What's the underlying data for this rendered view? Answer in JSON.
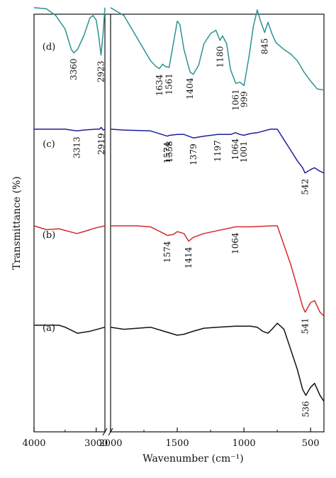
{
  "chart_data": {
    "type": "line",
    "xlabel": "Wavenumber (cm⁻¹)",
    "ylabel": "Transmittance (%)",
    "x_ticks": [
      "4000",
      "3000",
      "2000",
      "1500",
      "1000",
      "500"
    ],
    "xlim": [
      4000,
      400
    ],
    "axis_break": "between 2850 and 2000 cm⁻¹",
    "grid": false,
    "series": [
      {
        "name": "(d)",
        "color": "#2a9490",
        "curve": [
          [
            4000,
            97
          ],
          [
            3800,
            96
          ],
          [
            3650,
            90
          ],
          [
            3500,
            78
          ],
          [
            3400,
            60
          ],
          [
            3360,
            57
          ],
          [
            3300,
            60
          ],
          [
            3200,
            72
          ],
          [
            3100,
            88
          ],
          [
            3050,
            90
          ],
          [
            3000,
            86
          ],
          [
            2960,
            72
          ],
          [
            2923,
            55
          ],
          [
            2890,
            74
          ],
          [
            2860,
            97
          ],
          [
            2000,
            97
          ],
          [
            1900,
            90
          ],
          [
            1800,
            70
          ],
          [
            1700,
            50
          ],
          [
            1660,
            45
          ],
          [
            1634,
            43
          ],
          [
            1610,
            47
          ],
          [
            1590,
            45
          ],
          [
            1561,
            44
          ],
          [
            1540,
            58
          ],
          [
            1500,
            85
          ],
          [
            1480,
            82
          ],
          [
            1450,
            60
          ],
          [
            1404,
            40
          ],
          [
            1380,
            38
          ],
          [
            1340,
            46
          ],
          [
            1300,
            65
          ],
          [
            1250,
            74
          ],
          [
            1210,
            77
          ],
          [
            1180,
            68
          ],
          [
            1160,
            72
          ],
          [
            1130,
            65
          ],
          [
            1100,
            42
          ],
          [
            1061,
            30
          ],
          [
            1030,
            31
          ],
          [
            999,
            28
          ],
          [
            960,
            55
          ],
          [
            930,
            80
          ],
          [
            900,
            95
          ],
          [
            875,
            85
          ],
          [
            845,
            75
          ],
          [
            820,
            84
          ],
          [
            790,
            74
          ],
          [
            760,
            66
          ],
          [
            700,
            60
          ],
          [
            650,
            56
          ],
          [
            600,
            50
          ],
          [
            550,
            40
          ],
          [
            500,
            32
          ],
          [
            450,
            25
          ],
          [
            400,
            24
          ]
        ],
        "labels": [
          {
            "text": "3360",
            "x": 3360
          },
          {
            "text": "2923",
            "x": 2923
          },
          {
            "text": "1634",
            "x": 1634
          },
          {
            "text": "1561",
            "x": 1561
          },
          {
            "text": "1404",
            "x": 1404
          },
          {
            "text": "1180",
            "x": 1180
          },
          {
            "text": "1061",
            "x": 1061
          },
          {
            "text": "999",
            "x": 999
          },
          {
            "text": "845",
            "x": 845
          }
        ]
      },
      {
        "name": "(c)",
        "color": "#1f1f9a",
        "curve": [
          [
            4000,
            62
          ],
          [
            3600,
            62
          ],
          [
            3500,
            62
          ],
          [
            3313,
            61
          ],
          [
            3200,
            61.5
          ],
          [
            3000,
            62
          ],
          [
            2950,
            62
          ],
          [
            2919,
            63
          ],
          [
            2890,
            61.5
          ],
          [
            2860,
            62
          ],
          [
            2000,
            62
          ],
          [
            1900,
            61.5
          ],
          [
            1700,
            61
          ],
          [
            1574,
            58
          ],
          [
            1558,
            58.5
          ],
          [
            1500,
            59
          ],
          [
            1450,
            59
          ],
          [
            1379,
            57
          ],
          [
            1300,
            58
          ],
          [
            1197,
            59
          ],
          [
            1100,
            59
          ],
          [
            1064,
            60
          ],
          [
            1030,
            59
          ],
          [
            1001,
            58.5
          ],
          [
            950,
            59.5
          ],
          [
            900,
            60
          ],
          [
            850,
            61
          ],
          [
            800,
            62
          ],
          [
            750,
            62
          ],
          [
            700,
            56
          ],
          [
            650,
            50
          ],
          [
            600,
            44
          ],
          [
            560,
            40
          ],
          [
            542,
            37
          ],
          [
            500,
            39
          ],
          [
            470,
            40
          ],
          [
            430,
            38
          ],
          [
            400,
            37
          ]
        ],
        "labels": [
          {
            "text": "3313",
            "x": 3313
          },
          {
            "text": "2919",
            "x": 2919
          },
          {
            "text": "1574",
            "x": 1574
          },
          {
            "text": "1558",
            "x": 1558
          },
          {
            "text": "1379",
            "x": 1379
          },
          {
            "text": "1197",
            "x": 1197
          },
          {
            "text": "1064",
            "x": 1064
          },
          {
            "text": "1001",
            "x": 1001
          },
          {
            "text": "542",
            "x": 542
          }
        ]
      },
      {
        "name": "(b)",
        "color": "#d22b2b",
        "curve": [
          [
            4000,
            60
          ],
          [
            3800,
            58
          ],
          [
            3600,
            58.5
          ],
          [
            3313,
            56
          ],
          [
            3200,
            57
          ],
          [
            3000,
            59
          ],
          [
            2860,
            60
          ],
          [
            2000,
            60
          ],
          [
            1800,
            60
          ],
          [
            1700,
            59.5
          ],
          [
            1600,
            56
          ],
          [
            1574,
            55
          ],
          [
            1530,
            55.5
          ],
          [
            1500,
            57
          ],
          [
            1450,
            56
          ],
          [
            1414,
            52
          ],
          [
            1380,
            54
          ],
          [
            1300,
            56
          ],
          [
            1200,
            57.5
          ],
          [
            1064,
            59.5
          ],
          [
            950,
            59.5
          ],
          [
            800,
            60
          ],
          [
            750,
            60
          ],
          [
            700,
            50
          ],
          [
            650,
            40
          ],
          [
            600,
            28
          ],
          [
            560,
            18
          ],
          [
            541,
            15
          ],
          [
            500,
            20
          ],
          [
            470,
            21
          ],
          [
            430,
            15
          ],
          [
            400,
            13
          ]
        ],
        "labels": [
          {
            "text": "1574",
            "x": 1574
          },
          {
            "text": "1414",
            "x": 1414
          },
          {
            "text": "1064",
            "x": 1064
          },
          {
            "text": "541",
            "x": 541
          }
        ]
      },
      {
        "name": "(a)",
        "color": "#111111",
        "curve": [
          [
            4000,
            44
          ],
          [
            3600,
            44
          ],
          [
            3500,
            43
          ],
          [
            3300,
            40
          ],
          [
            3100,
            41
          ],
          [
            2860,
            43
          ],
          [
            2000,
            43
          ],
          [
            1900,
            42
          ],
          [
            1700,
            43
          ],
          [
            1600,
            41
          ],
          [
            1500,
            39
          ],
          [
            1450,
            39.5
          ],
          [
            1380,
            41
          ],
          [
            1300,
            42.5
          ],
          [
            1200,
            43
          ],
          [
            1064,
            43.5
          ],
          [
            950,
            43.5
          ],
          [
            900,
            43
          ],
          [
            860,
            41
          ],
          [
            820,
            40
          ],
          [
            790,
            42
          ],
          [
            750,
            45
          ],
          [
            700,
            42
          ],
          [
            650,
            32
          ],
          [
            600,
            22
          ],
          [
            560,
            12
          ],
          [
            536,
            9
          ],
          [
            500,
            13
          ],
          [
            470,
            15
          ],
          [
            430,
            9
          ],
          [
            400,
            6
          ]
        ],
        "labels": [
          {
            "text": "536",
            "x": 536
          }
        ]
      }
    ]
  }
}
